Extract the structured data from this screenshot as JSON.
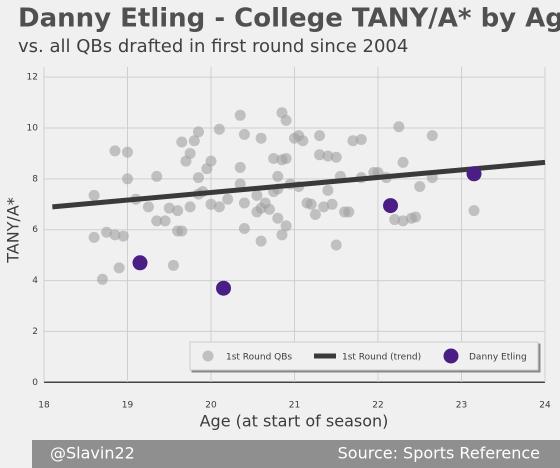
{
  "chart_data": {
    "type": "scatter",
    "title": "Danny Etling - College TANY/A* by Age",
    "subtitle": "vs. all QBs drafted in first round since 2004",
    "x_label": "Age (at start of season)",
    "y_label": "TANY/A*",
    "xlim": [
      18,
      24
    ],
    "xticks": [
      18,
      19,
      20,
      21,
      22,
      23,
      24
    ],
    "ylim": [
      -0.5,
      12.4
    ],
    "yticks": [
      0,
      2,
      4,
      6,
      8,
      10,
      12
    ],
    "grid": true,
    "legend": "bottom-right",
    "series": [
      {
        "name": "1st Round QBs",
        "type": "scatter",
        "color": "#a0a0a0",
        "x": [
          18.6,
          18.6,
          18.7,
          18.75,
          18.85,
          18.85,
          18.9,
          18.95,
          19.0,
          19.0,
          19.1,
          19.25,
          19.35,
          19.35,
          19.45,
          19.5,
          19.55,
          19.6,
          19.6,
          19.65,
          19.65,
          19.7,
          19.75,
          19.75,
          19.8,
          19.85,
          19.85,
          19.85,
          19.9,
          19.95,
          20.0,
          20.0,
          20.1,
          20.1,
          20.2,
          20.35,
          20.35,
          20.35,
          20.4,
          20.4,
          20.4,
          20.55,
          20.55,
          20.6,
          20.6,
          20.6,
          20.65,
          20.7,
          20.75,
          20.75,
          20.8,
          20.8,
          20.8,
          20.85,
          20.85,
          20.85,
          20.9,
          20.9,
          20.9,
          20.95,
          21.0,
          21.05,
          21.05,
          21.1,
          21.15,
          21.2,
          21.25,
          21.3,
          21.3,
          21.35,
          21.4,
          21.4,
          21.45,
          21.5,
          21.5,
          21.55,
          21.6,
          21.65,
          21.7,
          21.8,
          21.8,
          21.95,
          22.0,
          22.1,
          22.2,
          22.25,
          22.3,
          22.3,
          22.4,
          22.45,
          22.5,
          22.65,
          22.65,
          23.15
        ],
        "values": [
          7.35,
          5.7,
          4.05,
          5.9,
          9.1,
          5.8,
          4.5,
          5.75,
          9.05,
          8.0,
          7.2,
          6.9,
          8.1,
          6.35,
          6.35,
          6.85,
          4.6,
          6.75,
          5.95,
          9.45,
          5.95,
          8.7,
          9.0,
          6.9,
          9.5,
          8.05,
          7.4,
          9.85,
          7.5,
          8.4,
          8.7,
          7.0,
          9.95,
          6.9,
          7.2,
          8.45,
          7.8,
          10.5,
          9.75,
          7.05,
          6.05,
          7.35,
          6.7,
          5.55,
          6.85,
          9.6,
          7.05,
          6.8,
          7.5,
          8.8,
          6.45,
          8.1,
          7.6,
          10.6,
          8.75,
          5.8,
          10.3,
          8.8,
          6.15,
          7.8,
          9.6,
          9.7,
          7.7,
          9.5,
          7.05,
          7.0,
          6.6,
          9.7,
          8.95,
          6.9,
          8.9,
          7.55,
          7.0,
          5.4,
          8.85,
          8.1,
          6.7,
          6.7,
          9.5,
          8.05,
          9.55,
          8.25,
          8.25,
          8.05,
          6.4,
          10.05,
          8.65,
          6.35,
          6.45,
          6.5,
          7.7,
          8.05,
          9.7,
          6.75
        ]
      },
      {
        "name": "1st Round (trend)",
        "type": "line",
        "color": "#3a3a3a",
        "x": [
          18.1,
          24
        ],
        "values": [
          6.9,
          8.65
        ]
      },
      {
        "name": "Danny Etling",
        "type": "scatter",
        "color": "#4b1e86",
        "x": [
          19.15,
          20.15,
          22.15,
          23.15
        ],
        "values": [
          4.7,
          3.7,
          6.95,
          8.2
        ]
      }
    ]
  },
  "footer": {
    "left": "@Slavin22",
    "right": "Source: Sports Reference"
  }
}
